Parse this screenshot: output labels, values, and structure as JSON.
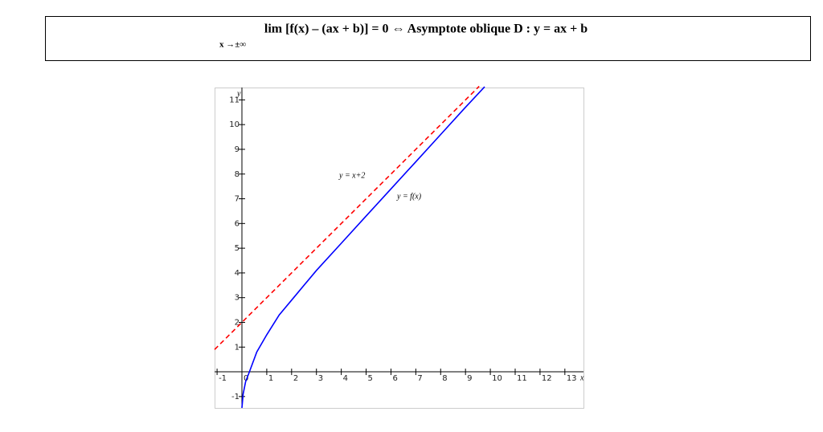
{
  "header": {
    "formula": "lim  [f(x) – (ax + b)] = 0  ⇔  Asymptote oblique  D : y = ax + b",
    "limit_subscript": "x →±∞"
  },
  "chart_data": {
    "type": "line",
    "xlabel": "x",
    "ylabel": "y",
    "xlim": [
      -1.1,
      13.75
    ],
    "ylim": [
      -1.46,
      11.5
    ],
    "xticks": [
      -1,
      0,
      1,
      2,
      3,
      4,
      5,
      6,
      7,
      8,
      9,
      10,
      11,
      12,
      13
    ],
    "yticks": [
      -1,
      1,
      2,
      3,
      4,
      5,
      6,
      7,
      8,
      9,
      10,
      11
    ],
    "grid": false,
    "series": [
      {
        "color": "#ff0000",
        "dashed": true,
        "x": [
          -1.1,
          9.55
        ],
        "values": [
          0.9,
          11.55
        ]
      },
      {
        "color": "#0000ff",
        "dashed": false,
        "x": [
          0,
          0.05,
          0.15,
          0.3,
          0.6,
          1,
          1.5,
          2,
          3,
          4,
          5,
          6,
          7,
          8,
          9,
          9.77
        ],
        "values": [
          -1.46,
          -0.9,
          -0.4,
          0,
          0.8,
          1.5,
          2.3,
          2.9,
          4.1,
          5.2,
          6.3,
          7.4,
          8.5,
          9.6,
          10.7,
          11.53
        ]
      }
    ],
    "annotations": [
      "y = x+2",
      "y = f(x)"
    ]
  }
}
